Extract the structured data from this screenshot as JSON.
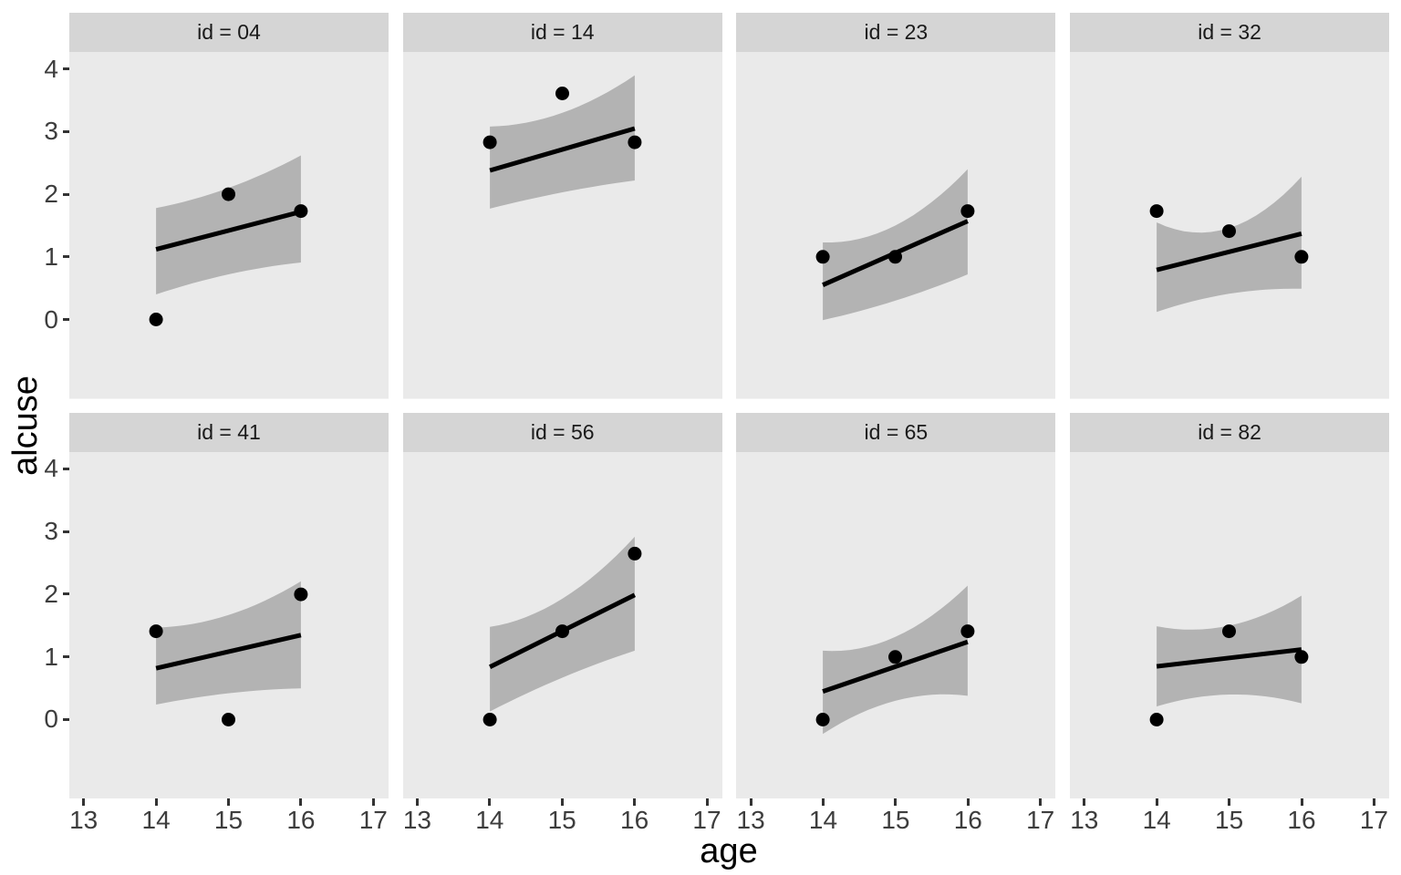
{
  "chart_data": {
    "type": "scatter",
    "description": "Faceted scatter plot with fitted trend lines and uncertainty ribbons, one panel per subject id",
    "facet_by": "id",
    "xlabel": "age",
    "ylabel": "alcuse",
    "x_ticks": [
      13,
      14,
      15,
      16,
      17
    ],
    "y_ticks": [
      4,
      3,
      2,
      1,
      0
    ],
    "xlim": [
      12.8,
      17.21
    ],
    "ylim": [
      -1.27,
      4.27
    ],
    "grid": "off",
    "legend": "none",
    "colors": {
      "page_bg": "#FFFFFF",
      "panel_bg": "#EAEAEA",
      "strip_bg": "#D5D5D5",
      "ribbon": "#B3B3B3",
      "line": "#000000",
      "point": "#000000",
      "tick": "#333333",
      "tick_label": "#3D3D3D",
      "strip_text": "#1A1A1A",
      "axis_title": "#000000"
    },
    "facets": [
      {
        "label": "id = 04",
        "points": [
          [
            14,
            0
          ],
          [
            15,
            2.0
          ],
          [
            16,
            1.73
          ]
        ],
        "line": {
          "x": [
            14,
            16
          ],
          "y": [
            1.12,
            1.72
          ]
        },
        "ribbon": {
          "x": [
            14,
            15,
            16
          ],
          "top": [
            1.78,
            2.1,
            2.62
          ],
          "bottom": [
            0.4,
            0.72,
            0.91
          ]
        }
      },
      {
        "label": "id = 14",
        "points": [
          [
            14,
            2.83
          ],
          [
            15,
            3.61
          ],
          [
            16,
            2.83
          ]
        ],
        "line": {
          "x": [
            14,
            16
          ],
          "y": [
            2.38,
            3.05
          ]
        },
        "ribbon": {
          "x": [
            14,
            15,
            16
          ],
          "top": [
            3.08,
            3.3,
            3.9
          ],
          "bottom": [
            1.77,
            2.03,
            2.22
          ]
        }
      },
      {
        "label": "id = 23",
        "points": [
          [
            14,
            1.0
          ],
          [
            15,
            1.0
          ],
          [
            16,
            1.73
          ]
        ],
        "line": {
          "x": [
            14,
            16
          ],
          "y": [
            0.55,
            1.57
          ]
        },
        "ribbon": {
          "x": [
            14,
            15,
            16
          ],
          "top": [
            1.23,
            1.5,
            2.4
          ],
          "bottom": [
            -0.01,
            0.3,
            0.72
          ]
        }
      },
      {
        "label": "id = 32",
        "points": [
          [
            14,
            1.73
          ],
          [
            15,
            1.41
          ],
          [
            16,
            1.0
          ]
        ],
        "line": {
          "x": [
            14,
            16
          ],
          "y": [
            0.79,
            1.37
          ]
        },
        "ribbon": {
          "x": [
            14,
            15,
            16
          ],
          "top": [
            1.55,
            1.46,
            2.28
          ],
          "bottom": [
            0.12,
            0.41,
            0.49
          ]
        }
      },
      {
        "label": "id = 41",
        "points": [
          [
            14,
            1.41
          ],
          [
            15,
            0
          ],
          [
            16,
            2.0
          ]
        ],
        "line": {
          "x": [
            14,
            16
          ],
          "y": [
            0.82,
            1.35
          ]
        },
        "ribbon": {
          "x": [
            14,
            15,
            16
          ],
          "top": [
            1.47,
            1.67,
            2.21
          ],
          "bottom": [
            0.24,
            0.42,
            0.5
          ]
        }
      },
      {
        "label": "id = 56",
        "points": [
          [
            14,
            0
          ],
          [
            15,
            1.41
          ],
          [
            16,
            2.65
          ]
        ],
        "line": {
          "x": [
            14,
            16
          ],
          "y": [
            0.84,
            1.99
          ]
        },
        "ribbon": {
          "x": [
            14,
            15,
            16
          ],
          "top": [
            1.48,
            1.93,
            2.92
          ],
          "bottom": [
            0.13,
            0.67,
            1.1
          ]
        }
      },
      {
        "label": "id = 65",
        "points": [
          [
            14,
            0
          ],
          [
            15,
            1.0
          ],
          [
            16,
            1.41
          ]
        ],
        "line": {
          "x": [
            14,
            16
          ],
          "y": [
            0.45,
            1.24
          ]
        },
        "ribbon": {
          "x": [
            14,
            15,
            16
          ],
          "top": [
            1.1,
            1.32,
            2.14
          ],
          "bottom": [
            -0.23,
            0.3,
            0.38
          ]
        }
      },
      {
        "label": "id = 82",
        "points": [
          [
            14,
            0
          ],
          [
            15,
            1.41
          ],
          [
            16,
            1.0
          ]
        ],
        "line": {
          "x": [
            14,
            16
          ],
          "y": [
            0.85,
            1.12
          ]
        },
        "ribbon": {
          "x": [
            14,
            15,
            16
          ],
          "top": [
            1.49,
            1.5,
            1.98
          ],
          "bottom": [
            0.21,
            0.4,
            0.26
          ]
        }
      }
    ]
  }
}
